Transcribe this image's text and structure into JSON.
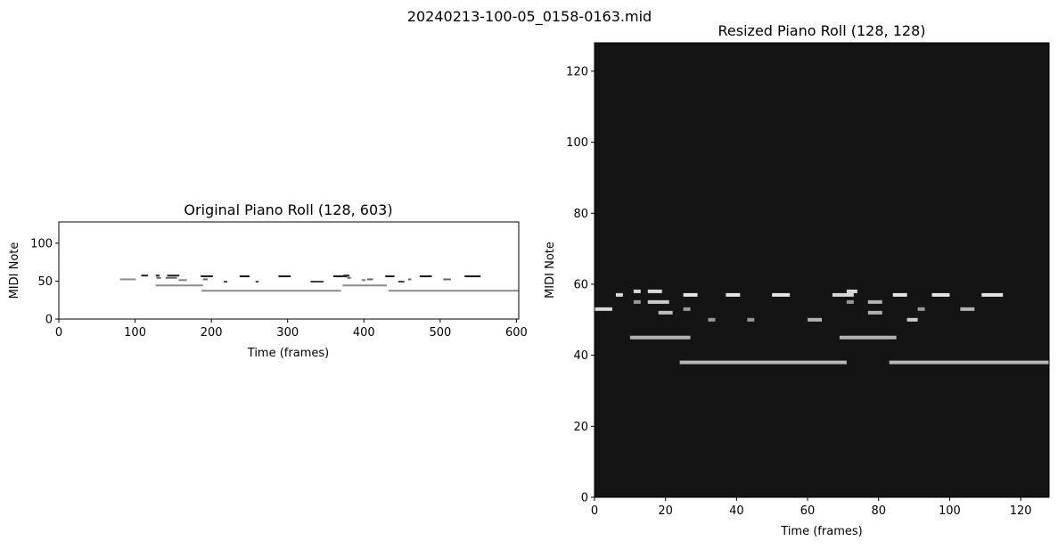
{
  "figure": {
    "suptitle": "20240213-100-05_0158-0163.mid"
  },
  "chart_data": [
    {
      "type": "heatmap",
      "title": "Original Piano Roll (128, 603)",
      "xlabel": "Time (frames)",
      "ylabel": "MIDI Note",
      "xlim": [
        0,
        603
      ],
      "ylim": [
        0,
        128
      ],
      "xticks": [
        "0",
        "100",
        "200",
        "300",
        "400",
        "500",
        "600"
      ],
      "yticks": [
        "0",
        "50",
        "100"
      ],
      "background_color": "#ffffff",
      "colormap": "gray_r",
      "notes": [
        {
          "pitch": 53,
          "start": 80,
          "end": 101,
          "level": 0.45
        },
        {
          "pitch": 58,
          "start": 108,
          "end": 117,
          "level": 0.85
        },
        {
          "pitch": 58,
          "start": 127,
          "end": 132,
          "level": 0.85
        },
        {
          "pitch": 55,
          "start": 128,
          "end": 134,
          "level": 0.6
        },
        {
          "pitch": 58,
          "start": 142,
          "end": 158,
          "level": 0.85
        },
        {
          "pitch": 55,
          "start": 140,
          "end": 155,
          "level": 0.6
        },
        {
          "pitch": 52,
          "start": 157,
          "end": 168,
          "level": 0.5
        },
        {
          "pitch": 57,
          "start": 186,
          "end": 202,
          "level": 0.9
        },
        {
          "pitch": 53,
          "start": 189,
          "end": 195,
          "level": 0.6
        },
        {
          "pitch": 50,
          "start": 216,
          "end": 221,
          "level": 0.7
        },
        {
          "pitch": 57,
          "start": 237,
          "end": 250,
          "level": 0.9
        },
        {
          "pitch": 50,
          "start": 258,
          "end": 262,
          "level": 0.7
        },
        {
          "pitch": 57,
          "start": 288,
          "end": 304,
          "level": 0.9
        },
        {
          "pitch": 50,
          "start": 330,
          "end": 347,
          "level": 0.75
        },
        {
          "pitch": 57,
          "start": 360,
          "end": 378,
          "level": 0.9
        },
        {
          "pitch": 58,
          "start": 373,
          "end": 381,
          "level": 0.85
        },
        {
          "pitch": 55,
          "start": 378,
          "end": 383,
          "level": 0.6
        },
        {
          "pitch": 52,
          "start": 397,
          "end": 402,
          "level": 0.5
        },
        {
          "pitch": 57,
          "start": 428,
          "end": 440,
          "level": 0.9
        },
        {
          "pitch": 53,
          "start": 404,
          "end": 412,
          "level": 0.6
        },
        {
          "pitch": 50,
          "start": 445,
          "end": 453,
          "level": 0.75
        },
        {
          "pitch": 53,
          "start": 458,
          "end": 462,
          "level": 0.6
        },
        {
          "pitch": 57,
          "start": 473,
          "end": 489,
          "level": 0.9
        },
        {
          "pitch": 53,
          "start": 504,
          "end": 514,
          "level": 0.6
        },
        {
          "pitch": 57,
          "start": 532,
          "end": 553,
          "level": 0.9
        },
        {
          "pitch": 45,
          "start": 127,
          "end": 189,
          "level": 0.45
        },
        {
          "pitch": 45,
          "start": 372,
          "end": 430,
          "level": 0.45
        },
        {
          "pitch": 38,
          "start": 187,
          "end": 370,
          "level": 0.45
        },
        {
          "pitch": 38,
          "start": 432,
          "end": 603,
          "level": 0.45
        }
      ]
    },
    {
      "type": "heatmap",
      "title": "Resized Piano Roll (128, 128)",
      "xlabel": "Time (frames)",
      "ylabel": "MIDI Note",
      "xlim": [
        0,
        128
      ],
      "ylim": [
        0,
        128
      ],
      "xticks": [
        "0",
        "20",
        "40",
        "60",
        "80",
        "100",
        "120"
      ],
      "yticks": [
        "0",
        "20",
        "40",
        "60",
        "80",
        "100",
        "120"
      ],
      "background_color": "#141414",
      "colormap": "gray",
      "notes": [
        {
          "pitch": 53,
          "start": 0,
          "end": 5,
          "level": 0.85
        },
        {
          "pitch": 57,
          "start": 6,
          "end": 8,
          "level": 0.85
        },
        {
          "pitch": 58,
          "start": 11,
          "end": 13,
          "level": 0.85
        },
        {
          "pitch": 55,
          "start": 11,
          "end": 13,
          "level": 0.6
        },
        {
          "pitch": 58,
          "start": 15,
          "end": 19,
          "level": 0.85
        },
        {
          "pitch": 55,
          "start": 15,
          "end": 21,
          "level": 0.8
        },
        {
          "pitch": 52,
          "start": 18,
          "end": 22,
          "level": 0.75
        },
        {
          "pitch": 57,
          "start": 25,
          "end": 29,
          "level": 0.9
        },
        {
          "pitch": 53,
          "start": 25,
          "end": 27,
          "level": 0.6
        },
        {
          "pitch": 50,
          "start": 32,
          "end": 34,
          "level": 0.6
        },
        {
          "pitch": 57,
          "start": 37,
          "end": 41,
          "level": 0.9
        },
        {
          "pitch": 50,
          "start": 43,
          "end": 45,
          "level": 0.6
        },
        {
          "pitch": 57,
          "start": 50,
          "end": 55,
          "level": 0.9
        },
        {
          "pitch": 50,
          "start": 60,
          "end": 64,
          "level": 0.7
        },
        {
          "pitch": 57,
          "start": 67,
          "end": 73,
          "level": 0.85
        },
        {
          "pitch": 58,
          "start": 71,
          "end": 74,
          "level": 0.85
        },
        {
          "pitch": 55,
          "start": 71,
          "end": 73,
          "level": 0.6
        },
        {
          "pitch": 52,
          "start": 77,
          "end": 81,
          "level": 0.7
        },
        {
          "pitch": 55,
          "start": 77,
          "end": 81,
          "level": 0.7
        },
        {
          "pitch": 57,
          "start": 84,
          "end": 88,
          "level": 0.9
        },
        {
          "pitch": 53,
          "start": 91,
          "end": 93,
          "level": 0.6
        },
        {
          "pitch": 50,
          "start": 88,
          "end": 91,
          "level": 0.8
        },
        {
          "pitch": 57,
          "start": 95,
          "end": 100,
          "level": 0.9
        },
        {
          "pitch": 53,
          "start": 103,
          "end": 107,
          "level": 0.7
        },
        {
          "pitch": 57,
          "start": 109,
          "end": 115,
          "level": 0.9
        },
        {
          "pitch": 45,
          "start": 10,
          "end": 27,
          "level": 0.7
        },
        {
          "pitch": 45,
          "start": 69,
          "end": 85,
          "level": 0.7
        },
        {
          "pitch": 38,
          "start": 24,
          "end": 71,
          "level": 0.72
        },
        {
          "pitch": 38,
          "start": 83,
          "end": 128,
          "level": 0.72
        }
      ]
    }
  ]
}
